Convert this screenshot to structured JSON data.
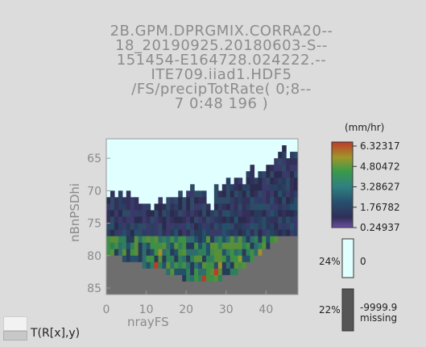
{
  "title_lines": [
    "2B.GPM.DPRGMIX.CORRA20--",
    "18_20190925.20180603-S--",
    "151454-E164728.024222.--",
    "ITE709.iiad1.HDF5",
    "/FS/precipTotRate( 0;8--",
    "7 0:48 196 )"
  ],
  "colorbar": {
    "unit": "(mm/hr)",
    "ticks": [
      "6.32317",
      "4.80472",
      "3.28627",
      "1.76782",
      "0.24937"
    ],
    "zero_pct": "24%",
    "zero_label": "0",
    "zero_color": "#e0ffff",
    "missing_pct": "22%",
    "missing_value": "-9999.9",
    "missing_label": "missing",
    "missing_color": "#555555"
  },
  "bottom_legend": {
    "label": "T(R[x],y)"
  },
  "chart_data": {
    "type": "heatmap",
    "title": "",
    "xlabel": "nrayFS",
    "ylabel": "nBnPSDhi",
    "xlim": [
      0,
      48
    ],
    "ylim": [
      86,
      62
    ],
    "xticks": [
      0,
      10,
      20,
      30,
      40
    ],
    "yticks": [
      65,
      70,
      75,
      80,
      85
    ],
    "value_range": [
      0.24937,
      6.32317
    ],
    "missing_below_row": 81,
    "zero_above_row_by_column": [
      71,
      70,
      71,
      70,
      71,
      70,
      71,
      71,
      72,
      72,
      72,
      73,
      72,
      71,
      72,
      71,
      71,
      71,
      70,
      71,
      70,
      69,
      70,
      70,
      70,
      72,
      73,
      69,
      70,
      69,
      68,
      69,
      68,
      68,
      69,
      67,
      66,
      68,
      67,
      67,
      66,
      66,
      65,
      64,
      63,
      65,
      64,
      64
    ],
    "precip_bottom_row_by_column": [
      80,
      80,
      80,
      80,
      81,
      81,
      81,
      81,
      81,
      82,
      82,
      82,
      82,
      82,
      82,
      83,
      83,
      83,
      83,
      84,
      84,
      84,
      84,
      84,
      84,
      84,
      84,
      84,
      84,
      83,
      83,
      83,
      83,
      82,
      82,
      81,
      81,
      80,
      80,
      79,
      79,
      78,
      78,
      77,
      77,
      77,
      77,
      77
    ]
  }
}
